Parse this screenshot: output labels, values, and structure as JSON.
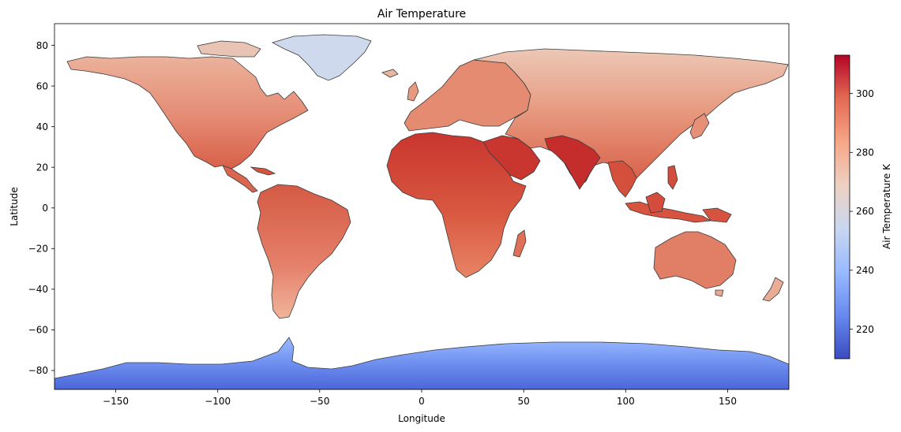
{
  "chart_data": {
    "type": "heatmap",
    "title": "Air Temperature",
    "xlabel": "Longitude",
    "ylabel": "Latitude",
    "xlim": [
      -180,
      180
    ],
    "ylim": [
      -90,
      90
    ],
    "xticks": [
      -150,
      -100,
      -50,
      0,
      50,
      100,
      150
    ],
    "yticks": [
      -80,
      -60,
      -40,
      -20,
      0,
      20,
      40,
      60,
      80
    ],
    "colorbar": {
      "label": "Air Temperature K",
      "range": [
        210,
        313
      ],
      "ticks": [
        220,
        240,
        260,
        280,
        300
      ],
      "colormap": "coolwarm",
      "colormap_stops": [
        "#3b4cc0",
        "#6788ee",
        "#9abbff",
        "#c9d7f0",
        "#edd1c2",
        "#f7a889",
        "#e26952",
        "#b40426"
      ]
    },
    "coastline_color": "#333333",
    "regions": [
      {
        "name": "North America",
        "approx_temp_K": 280
      },
      {
        "name": "Greenland",
        "approx_temp_K": 258
      },
      {
        "name": "South America",
        "approx_temp_K": 293
      },
      {
        "name": "Europe",
        "approx_temp_K": 285
      },
      {
        "name": "Africa",
        "approx_temp_K": 300
      },
      {
        "name": "Arabia",
        "approx_temp_K": 305
      },
      {
        "name": "Asia",
        "approx_temp_K": 280
      },
      {
        "name": "India",
        "approx_temp_K": 305
      },
      {
        "name": "Southeast Asia",
        "approx_temp_K": 298
      },
      {
        "name": "Australia",
        "approx_temp_K": 292
      },
      {
        "name": "Antarctica",
        "approx_temp_K": 230
      }
    ]
  }
}
